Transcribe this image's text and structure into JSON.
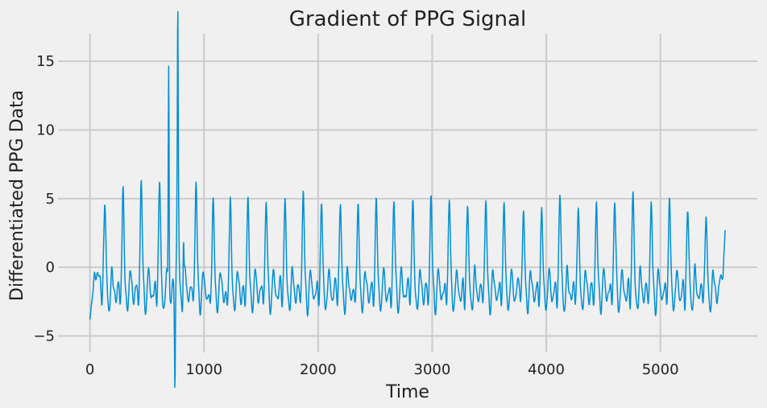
{
  "chart_data": {
    "type": "line",
    "title": "Gradient of PPG Signal",
    "xlabel": "Time",
    "ylabel": "Differentiated PPG Data",
    "xlim": [
      -280,
      5850
    ],
    "ylim": [
      -6.2,
      17.0
    ],
    "xticks": [
      0,
      1000,
      2000,
      3000,
      4000,
      5000
    ],
    "yticks": [
      -5,
      0,
      5,
      10,
      15
    ],
    "xtick_labels": [
      "0",
      "1000",
      "2000",
      "3000",
      "4000",
      "5000"
    ],
    "ytick_labels": [
      "−5",
      "0",
      "5",
      "10",
      "15"
    ],
    "grid": true,
    "line_color": "#008fd5",
    "beat_centers": [
      130,
      290,
      450,
      610,
      770,
      930,
      1080,
      1230,
      1385,
      1545,
      1710,
      1870,
      2030,
      2195,
      2350,
      2510,
      2665,
      2830,
      2990,
      3150,
      3310,
      3470,
      3630,
      3800,
      3960,
      4120,
      4280,
      4440,
      4600,
      4760,
      4920,
      5080,
      5240,
      5400
    ],
    "beat_peaks": [
      5.5,
      6.2,
      7.0,
      7.0,
      6.9,
      6.8,
      5.5,
      5.5,
      5.5,
      5.5,
      5.5,
      6.2,
      5.2,
      5.3,
      5.2,
      5.5,
      5.5,
      5.4,
      5.8,
      5.6,
      5.1,
      5.5,
      5.1,
      4.7,
      4.7,
      6.2,
      4.8,
      5.2,
      5.5,
      6.1,
      5.4,
      5.5,
      4.9,
      4.3
    ],
    "spikes": [
      {
        "x": 690,
        "y": 16.2
      },
      {
        "x": 770,
        "y": 12.8
      },
      {
        "x": 745,
        "y": -6.0
      },
      {
        "x": 820,
        "y": 4.0
      }
    ],
    "x_start": 0,
    "x_end": 5570,
    "start_value": -3.8,
    "end_value": 3.1
  }
}
